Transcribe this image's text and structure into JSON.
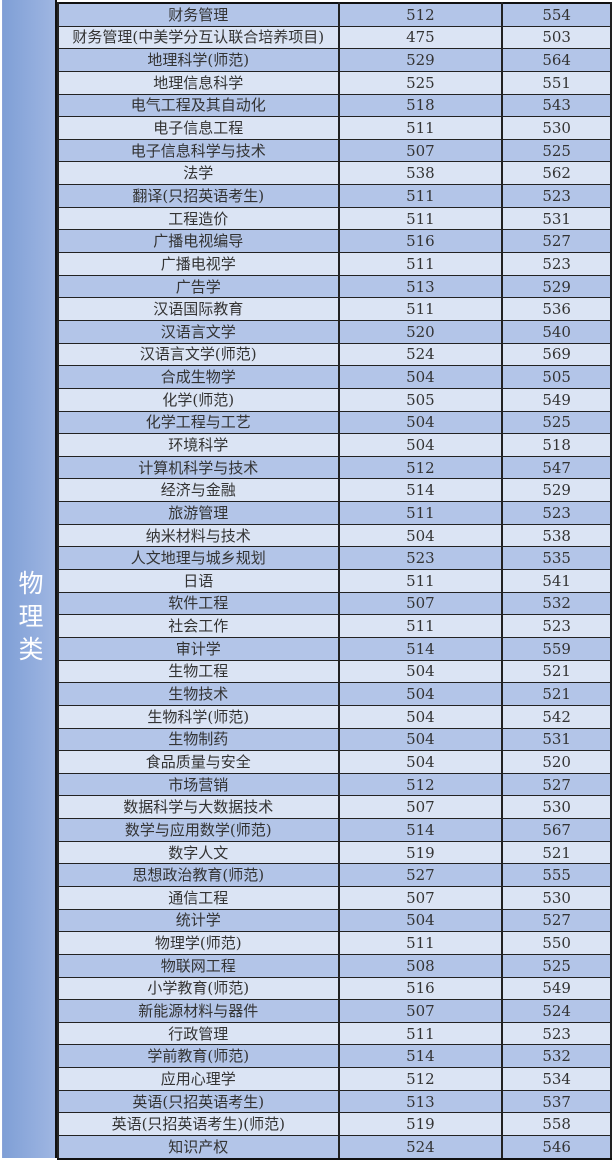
{
  "category": "物理类",
  "colors": {
    "category_bg": "#8faadc",
    "row_dark": "#b3c5e8",
    "row_light": "#dbe4f4"
  },
  "rows": [
    [
      "财务管理",
      "512",
      "554"
    ],
    [
      "财务管理(中美学分互认联合培养项目)",
      "475",
      "503"
    ],
    [
      "地理科学(师范)",
      "529",
      "564"
    ],
    [
      "地理信息科学",
      "525",
      "551"
    ],
    [
      "电气工程及其自动化",
      "518",
      "543"
    ],
    [
      "电子信息工程",
      "511",
      "530"
    ],
    [
      "电子信息科学与技术",
      "507",
      "525"
    ],
    [
      "法学",
      "538",
      "562"
    ],
    [
      "翻译(只招英语考生)",
      "511",
      "523"
    ],
    [
      "工程造价",
      "511",
      "531"
    ],
    [
      "广播电视编导",
      "516",
      "527"
    ],
    [
      "广播电视学",
      "511",
      "523"
    ],
    [
      "广告学",
      "513",
      "529"
    ],
    [
      "汉语国际教育",
      "511",
      "536"
    ],
    [
      "汉语言文学",
      "520",
      "540"
    ],
    [
      "汉语言文学(师范)",
      "524",
      "569"
    ],
    [
      "合成生物学",
      "504",
      "505"
    ],
    [
      "化学(师范)",
      "505",
      "549"
    ],
    [
      "化学工程与工艺",
      "504",
      "525"
    ],
    [
      "环境科学",
      "504",
      "518"
    ],
    [
      "计算机科学与技术",
      "512",
      "547"
    ],
    [
      "经济与金融",
      "514",
      "529"
    ],
    [
      "旅游管理",
      "511",
      "523"
    ],
    [
      "纳米材料与技术",
      "504",
      "538"
    ],
    [
      "人文地理与城乡规划",
      "523",
      "535"
    ],
    [
      "日语",
      "511",
      "541"
    ],
    [
      "软件工程",
      "507",
      "532"
    ],
    [
      "社会工作",
      "511",
      "523"
    ],
    [
      "审计学",
      "514",
      "559"
    ],
    [
      "生物工程",
      "504",
      "521"
    ],
    [
      "生物技术",
      "504",
      "521"
    ],
    [
      "生物科学(师范)",
      "504",
      "542"
    ],
    [
      "生物制药",
      "504",
      "531"
    ],
    [
      "食品质量与安全",
      "504",
      "520"
    ],
    [
      "市场营销",
      "512",
      "527"
    ],
    [
      "数据科学与大数据技术",
      "507",
      "530"
    ],
    [
      "数学与应用数学(师范)",
      "514",
      "567"
    ],
    [
      "数字人文",
      "519",
      "521"
    ],
    [
      "思想政治教育(师范)",
      "527",
      "555"
    ],
    [
      "通信工程",
      "507",
      "530"
    ],
    [
      "统计学",
      "504",
      "527"
    ],
    [
      "物理学(师范)",
      "511",
      "550"
    ],
    [
      "物联网工程",
      "508",
      "525"
    ],
    [
      "小学教育(师范)",
      "516",
      "549"
    ],
    [
      "新能源材料与器件",
      "507",
      "524"
    ],
    [
      "行政管理",
      "511",
      "523"
    ],
    [
      "学前教育(师范)",
      "514",
      "532"
    ],
    [
      "应用心理学",
      "512",
      "534"
    ],
    [
      "英语(只招英语考生)",
      "513",
      "537"
    ],
    [
      "英语(只招英语考生)(师范)",
      "519",
      "558"
    ],
    [
      "知识产权",
      "524",
      "546"
    ]
  ]
}
